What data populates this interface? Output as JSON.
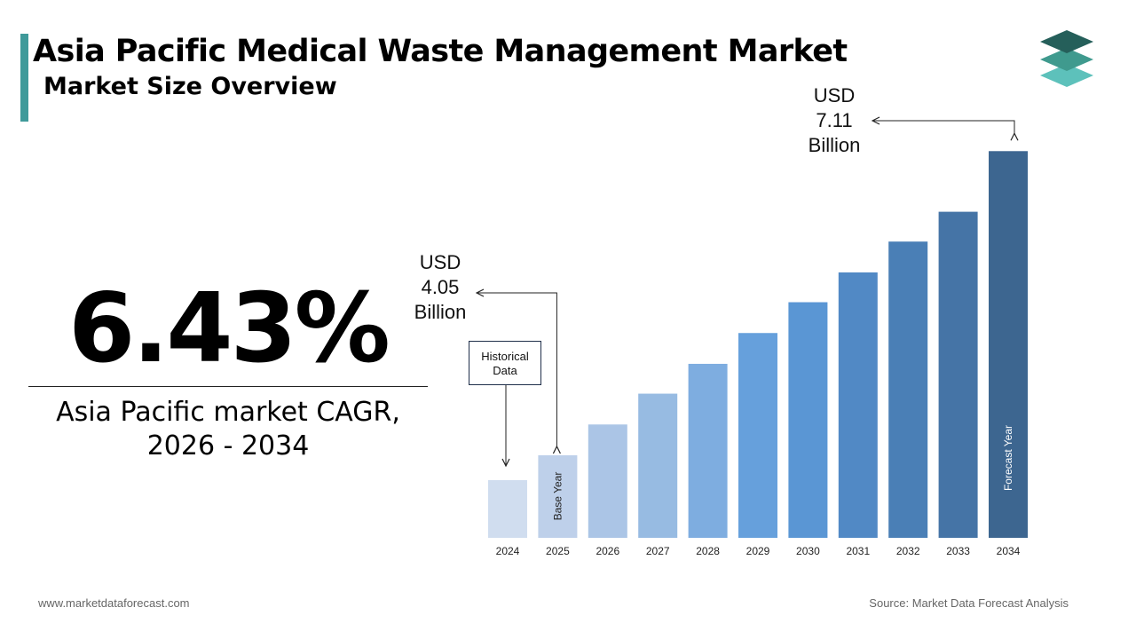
{
  "header": {
    "title": "Asia Pacific Medical Waste Management Market",
    "subtitle": "Market Size Overview"
  },
  "highlight": {
    "value": "6.43%",
    "caption_line1": "Asia Pacific market CAGR,",
    "caption_line2": "2026 - 2034"
  },
  "callouts": {
    "base": {
      "line1": "USD",
      "line2": "4.05",
      "line3": "Billion"
    },
    "forecast": {
      "line1": "USD",
      "line2": "7.11",
      "line3": "Billion"
    },
    "historical_box": {
      "line1": "Historical",
      "line2": "Data"
    }
  },
  "footer": {
    "website": "www.marketdataforecast.com",
    "source": "Source: Market Data Forecast Analysis"
  },
  "colors": {
    "accent": "#3f9a9a",
    "bars": [
      "#d0ddef",
      "#bed0ea",
      "#abc5e6",
      "#97bbe2",
      "#7eade0",
      "#66a0dc",
      "#5a96d4",
      "#5189c5",
      "#4a7fb6",
      "#4574a6",
      "#3d6690"
    ],
    "logo": [
      "#5dc1bb",
      "#3f9a8e",
      "#255f5a"
    ]
  },
  "chart_data": {
    "type": "bar",
    "categories": [
      "2024",
      "2025",
      "2026",
      "2027",
      "2028",
      "2029",
      "2030",
      "2031",
      "2032",
      "2033",
      "2034"
    ],
    "values": [
      3.8,
      4.05,
      4.36,
      4.67,
      4.97,
      5.28,
      5.59,
      5.89,
      6.2,
      6.5,
      7.11
    ],
    "value_labels": {
      "2025": "USD 4.05 Billion",
      "2034": "USD 7.11 Billion"
    },
    "in_bar_labels": {
      "2025": "Base Year",
      "2034": "Forecast Year"
    },
    "grid": false,
    "legend": "none"
  }
}
